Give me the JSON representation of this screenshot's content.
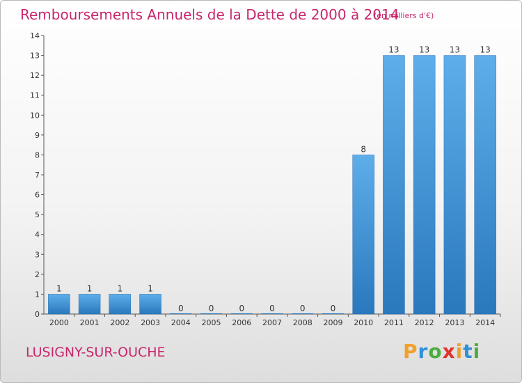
{
  "title": "Remboursements Annuels de la Dette de 2000 à 2014",
  "subtitle": "(en milliers d'€)",
  "commune": "LUSIGNY-SUR-OUCHE",
  "logo": {
    "letters": [
      "P",
      "r",
      "o",
      "x",
      "i",
      "t",
      "i"
    ],
    "colors": [
      "#f1a12b",
      "#2f8fd8",
      "#4cae3c",
      "#e0322a",
      "#f1a12b",
      "#2f8fd8",
      "#4cae3c"
    ]
  },
  "chart_data": {
    "type": "bar",
    "title": "Remboursements Annuels de la Dette de 2000 à 2014",
    "subtitle": "(en milliers d'€)",
    "categories": [
      "2000",
      "2001",
      "2002",
      "2003",
      "2004",
      "2005",
      "2006",
      "2007",
      "2008",
      "2009",
      "2010",
      "2011",
      "2012",
      "2013",
      "2014"
    ],
    "values": [
      1,
      1,
      1,
      1,
      0,
      0,
      0,
      0,
      0,
      0,
      8,
      13,
      13,
      13,
      13
    ],
    "data_labels": [
      "1",
      "1",
      "1",
      "1",
      "0",
      "0",
      "0",
      "0",
      "0",
      "0",
      "8",
      "13",
      "13",
      "13",
      "13"
    ],
    "ylim": [
      0,
      14
    ],
    "yticks": [
      0,
      1,
      2,
      3,
      4,
      5,
      6,
      7,
      8,
      9,
      10,
      11,
      12,
      13,
      14
    ],
    "xlabel": "",
    "ylabel": "",
    "grid": false,
    "bar_color": "#3d8fd6"
  }
}
